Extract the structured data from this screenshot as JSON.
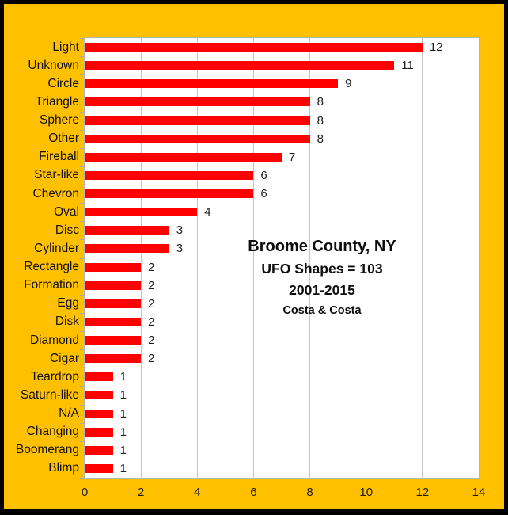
{
  "colors": {
    "background": "#FFC000",
    "frame_border": "#000000",
    "plot_background": "#FFFFFF",
    "bar_fill": "#FF0000",
    "gridline": "#C7C7C7",
    "axis_line": "#B3B3B3",
    "text": "#111111"
  },
  "chart_data": {
    "type": "bar",
    "orientation": "horizontal",
    "categories": [
      "Light",
      "Unknown",
      "Circle",
      "Triangle",
      "Sphere",
      "Other",
      "Fireball",
      "Star-like",
      "Chevron",
      "Oval",
      "Disc",
      "Cylinder",
      "Rectangle",
      "Formation",
      "Egg",
      "Disk",
      "Diamond",
      "Cigar",
      "Teardrop",
      "Saturn-like",
      "N/A",
      "Changing",
      "Boomerang",
      "Blimp"
    ],
    "values": [
      12,
      11,
      9,
      8,
      8,
      8,
      7,
      6,
      6,
      4,
      3,
      3,
      2,
      2,
      2,
      2,
      2,
      2,
      1,
      1,
      1,
      1,
      1,
      1
    ],
    "data_labels": true,
    "xlim": [
      0,
      14
    ],
    "x_ticks": [
      0,
      2,
      4,
      6,
      8,
      10,
      12,
      14
    ],
    "grid": true,
    "legend": null,
    "title": "",
    "xlabel": "",
    "ylabel": "",
    "annotation": {
      "line1": "Broome County, NY",
      "line2": "UFO Shapes = 103",
      "line3": "2001-2015",
      "line4": "Costa & Costa"
    }
  }
}
